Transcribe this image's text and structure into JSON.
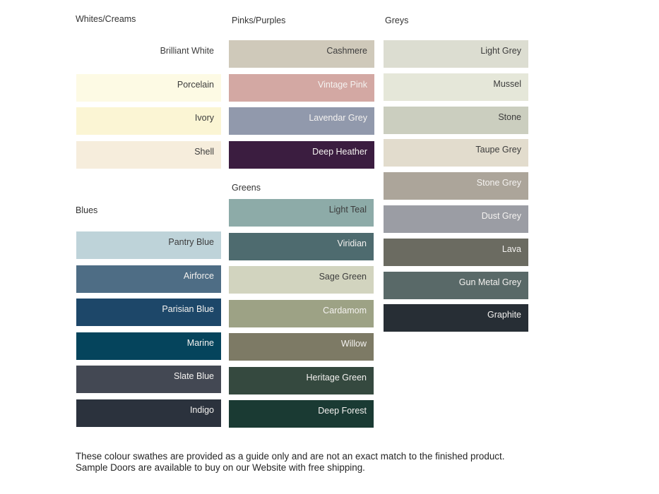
{
  "sections": [
    {
      "id": "whites-creams",
      "title": "Whites/Creams",
      "swatches": [
        {
          "name": "Brilliant White",
          "color": "#FFFFFF",
          "text": "dark"
        },
        {
          "name": "Porcelain",
          "color": "#FDFAE4",
          "text": "dark"
        },
        {
          "name": "Ivory",
          "color": "#FBF5D4",
          "text": "dark"
        },
        {
          "name": "Shell",
          "color": "#F6EDDC",
          "text": "dark"
        }
      ]
    },
    {
      "id": "blues",
      "title": "Blues",
      "swatches": [
        {
          "name": "Pantry Blue",
          "color": "#BED3D9",
          "text": "dark"
        },
        {
          "name": "Airforce",
          "color": "#4E6D85",
          "text": "light"
        },
        {
          "name": "Parisian Blue",
          "color": "#1D4769",
          "text": "light"
        },
        {
          "name": "Marine",
          "color": "#05445C",
          "text": "light"
        },
        {
          "name": "Slate Blue",
          "color": "#434853",
          "text": "light"
        },
        {
          "name": "Indigo",
          "color": "#2B323D",
          "text": "light"
        }
      ]
    },
    {
      "id": "pinks-purples",
      "title": "Pinks/Purples",
      "swatches": [
        {
          "name": "Cashmere",
          "color": "#CFC9BA",
          "text": "dark"
        },
        {
          "name": "Vintage Pink",
          "color": "#D3A8A3",
          "text": "light"
        },
        {
          "name": "Lavendar Grey",
          "color": "#9199AC",
          "text": "light"
        },
        {
          "name": "Deep Heather",
          "color": "#3B1D40",
          "text": "light"
        }
      ]
    },
    {
      "id": "greens",
      "title": "Greens",
      "swatches": [
        {
          "name": "Light Teal",
          "color": "#8DABA8",
          "text": "dark"
        },
        {
          "name": "Viridian",
          "color": "#4E6B6F",
          "text": "light"
        },
        {
          "name": "Sage Green",
          "color": "#D2D4BF",
          "text": "dark"
        },
        {
          "name": "Cardamom",
          "color": "#9DA285",
          "text": "light"
        },
        {
          "name": "Willow",
          "color": "#7D7A65",
          "text": "light"
        },
        {
          "name": "Heritage Green",
          "color": "#35493F",
          "text": "light"
        },
        {
          "name": "Deep Forest",
          "color": "#1A3A33",
          "text": "light"
        }
      ]
    },
    {
      "id": "greys",
      "title": "Greys",
      "swatches": [
        {
          "name": "Light Grey",
          "color": "#DCDDD1",
          "text": "dark"
        },
        {
          "name": "Mussel",
          "color": "#E5E7D9",
          "text": "dark"
        },
        {
          "name": "Stone",
          "color": "#CBCEBF",
          "text": "dark"
        },
        {
          "name": "Taupe Grey",
          "color": "#E2DCCD",
          "text": "dark"
        },
        {
          "name": "Stone Grey",
          "color": "#ACA59A",
          "text": "light"
        },
        {
          "name": "Dust Grey",
          "color": "#9B9DA4",
          "text": "light"
        },
        {
          "name": "Lava",
          "color": "#6B6B61",
          "text": "light"
        },
        {
          "name": "Gun Metal Grey",
          "color": "#596968",
          "text": "light"
        },
        {
          "name": "Graphite",
          "color": "#272E35",
          "text": "light"
        }
      ]
    }
  ],
  "disclaimer": "These colour swathes are provided as a guide only and are not an exact match to the finished product.  Sample Doors are available to buy on our Website with free shipping."
}
